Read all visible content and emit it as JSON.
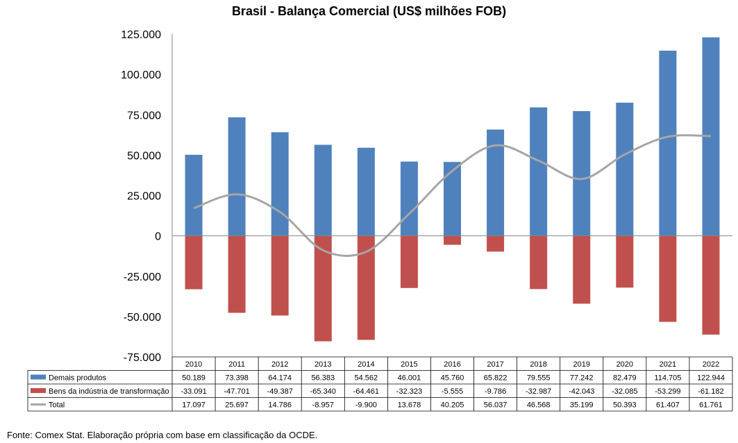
{
  "chart_data": {
    "type": "bar",
    "title": "Brasil - Balança Comercial (US$ milhões FOB)",
    "categories": [
      "2010",
      "2011",
      "2012",
      "2013",
      "2014",
      "2015",
      "2016",
      "2017",
      "2018",
      "2019",
      "2020",
      "2021",
      "2022"
    ],
    "ylim": [
      -75000,
      125000
    ],
    "yticks": [
      125000,
      100000,
      75000,
      50000,
      25000,
      0,
      -25000,
      -50000,
      -75000
    ],
    "ytick_labels": [
      "125.000",
      "100.000",
      "75.000",
      "50.000",
      "25.000",
      "0",
      "-25.000",
      "-50.000",
      "-75.000"
    ],
    "series": [
      {
        "name": "Demais produtos",
        "type": "bar",
        "color": "#4F81BD",
        "values": [
          50189,
          73398,
          64174,
          56383,
          54562,
          46001,
          45760,
          65822,
          79555,
          77242,
          82479,
          114705,
          122944
        ],
        "labels": [
          "50.189",
          "73.398",
          "64.174",
          "56.383",
          "54.562",
          "46.001",
          "45.760",
          "65.822",
          "79.555",
          "77.242",
          "82.479",
          "114.705",
          "122.944"
        ]
      },
      {
        "name": "Bens da indústria de transformação",
        "type": "bar",
        "color": "#C0504D",
        "values": [
          -33091,
          -47701,
          -49387,
          -65340,
          -64461,
          -32323,
          -5555,
          -9786,
          -32987,
          -42043,
          -32085,
          -53299,
          -61182
        ],
        "labels": [
          "-33.091",
          "-47.701",
          "-49.387",
          "-65.340",
          "-64.461",
          "-32.323",
          "-5.555",
          "-9.786",
          "-32.987",
          "-42.043",
          "-32.085",
          "-53.299",
          "-61.182"
        ]
      },
      {
        "name": "Total",
        "type": "line",
        "color": "#A6A6A6",
        "values": [
          17097,
          25697,
          14786,
          -8957,
          -9900,
          13678,
          40205,
          56037,
          46568,
          35199,
          50393,
          61407,
          61761
        ],
        "labels": [
          "17.097",
          "25.697",
          "14.786",
          "-8.957",
          "-9.900",
          "13.678",
          "40.205",
          "56.037",
          "46.568",
          "35.199",
          "50.393",
          "61.407",
          "61.761"
        ]
      }
    ],
    "data_table": true
  },
  "source_note": "Fonte: Comex Stat. Elaboração própria com base em classificação da OCDE."
}
